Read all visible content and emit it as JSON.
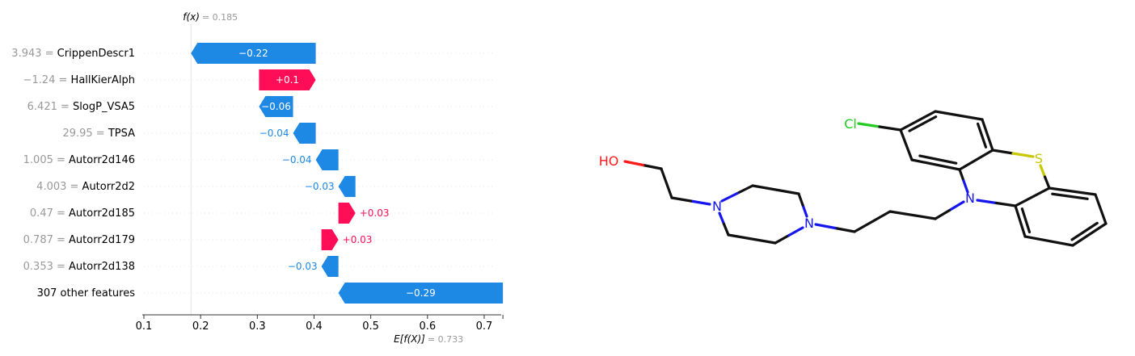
{
  "chart_data": {
    "type": "waterfall",
    "fx_label": "f(x)",
    "fx_value": "= 0.185",
    "base": 0.733,
    "ex_label": "E[f(X)]",
    "ex_value": "= 0.733",
    "xlim": [
      0.1,
      0.73
    ],
    "xticks": [
      "0.1",
      "0.2",
      "0.3",
      "0.4",
      "0.5",
      "0.6",
      "0.7"
    ],
    "colors": {
      "positive": "#ff0d57",
      "negative": "#1e88e5",
      "muted": "#999999",
      "text": "#000000"
    },
    "features": [
      {
        "value": "3.943",
        "name": "CrippenDescr1",
        "contribution": -0.22,
        "label": "−0.22",
        "label_inside": true
      },
      {
        "value": "−1.24",
        "name": "HallKierAlph",
        "contribution": 0.1,
        "label": "+0.1",
        "label_inside": true
      },
      {
        "value": "6.421",
        "name": "SlogP_VSA5",
        "contribution": -0.06,
        "label": "−0.06",
        "label_inside": true
      },
      {
        "value": "29.95",
        "name": "TPSA",
        "contribution": -0.04,
        "label": "−0.04",
        "label_inside": false
      },
      {
        "value": "1.005",
        "name": "Autorr2d146",
        "contribution": -0.04,
        "label": "−0.04",
        "label_inside": false
      },
      {
        "value": "4.003",
        "name": "Autorr2d2",
        "contribution": -0.03,
        "label": "−0.03",
        "label_inside": false
      },
      {
        "value": "0.47",
        "name": "Autorr2d185",
        "contribution": 0.03,
        "label": "+0.03",
        "label_inside": false
      },
      {
        "value": "0.787",
        "name": "Autorr2d179",
        "contribution": 0.03,
        "label": "+0.03",
        "label_inside": false
      },
      {
        "value": "0.353",
        "name": "Autorr2d138",
        "contribution": -0.03,
        "label": "−0.03",
        "label_inside": false
      },
      {
        "value": "",
        "name": "307 other features",
        "contribution": -0.29,
        "label": "−0.29",
        "label_inside": true
      }
    ]
  },
  "molecule": {
    "atom_labels": {
      "chlorine": "Cl",
      "sulfur": "S",
      "hydroxyl": "HO",
      "nitrogen": "N"
    },
    "colors": {
      "bond": "#111111",
      "chlorine": "#22cc22",
      "sulfur": "#c8c800",
      "oxygen": "#ff1a1a",
      "nitrogen": "#1515ee"
    }
  }
}
